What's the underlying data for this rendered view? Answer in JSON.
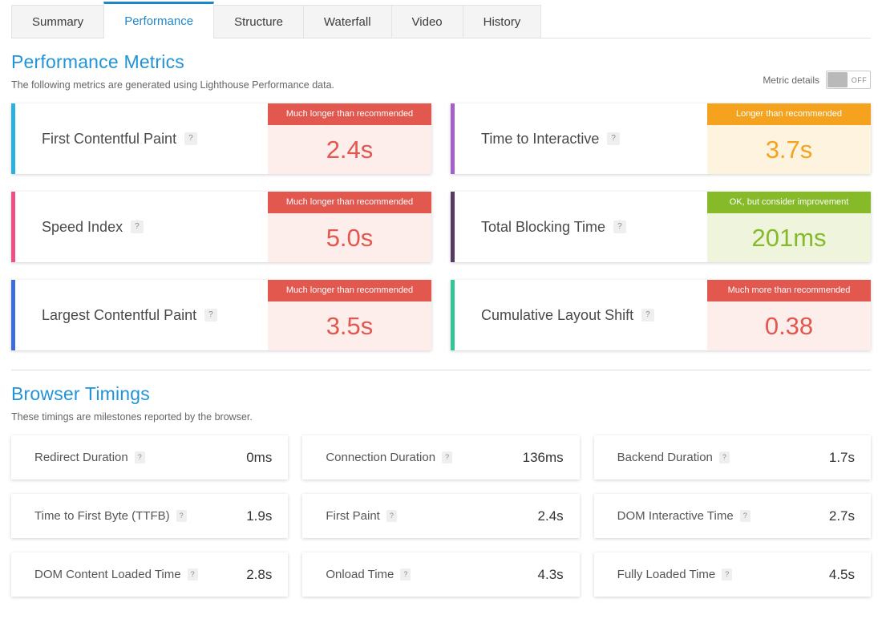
{
  "tabs": [
    {
      "label": "Summary",
      "active": false
    },
    {
      "label": "Performance",
      "active": true
    },
    {
      "label": "Structure",
      "active": false
    },
    {
      "label": "Waterfall",
      "active": false
    },
    {
      "label": "Video",
      "active": false
    },
    {
      "label": "History",
      "active": false
    }
  ],
  "help_icon": "?",
  "performance": {
    "title": "Performance Metrics",
    "subtitle": "The following metrics are generated using Lighthouse Performance data.",
    "toggle": {
      "label": "Metric details",
      "state": "OFF"
    },
    "cards": [
      {
        "label": "First Contentful Paint",
        "badge": "Much longer than recommended",
        "value": "2.4s",
        "accent": "#29b2e0",
        "status": "red",
        "status_color": "#e2574e",
        "status_bg": "#fdeeec"
      },
      {
        "label": "Time to Interactive",
        "badge": "Longer than recommended",
        "value": "3.7s",
        "accent": "#a55fc8",
        "status": "orange",
        "status_color": "#f5a31f",
        "status_bg": "#fdf3de"
      },
      {
        "label": "Speed Index",
        "badge": "Much longer than recommended",
        "value": "5.0s",
        "accent": "#ee4f87",
        "status": "red",
        "status_color": "#e2574e",
        "status_bg": "#fdeeec"
      },
      {
        "label": "Total Blocking Time",
        "badge": "OK, but consider improvement",
        "value": "201ms",
        "accent": "#563a63",
        "status": "green",
        "status_color": "#86ba28",
        "status_bg": "#eff4dc"
      },
      {
        "label": "Largest Contentful Paint",
        "badge": "Much longer than recommended",
        "value": "3.5s",
        "accent": "#3b6edb",
        "status": "red",
        "status_color": "#e2574e",
        "status_bg": "#fdeeec"
      },
      {
        "label": "Cumulative Layout Shift",
        "badge": "Much more than recommended",
        "value": "0.38",
        "accent": "#35c398",
        "status": "red",
        "status_color": "#e2574e",
        "status_bg": "#fdeeec"
      }
    ]
  },
  "browser_timings": {
    "title": "Browser Timings",
    "subtitle": "These timings are milestones reported by the browser.",
    "items": [
      {
        "label": "Redirect Duration",
        "value": "0ms",
        "accent": "#f3ece4"
      },
      {
        "label": "Connection Duration",
        "value": "136ms",
        "accent": "#d9d9d9"
      },
      {
        "label": "Backend Duration",
        "value": "1.7s",
        "accent": "#c3c3c3"
      },
      {
        "label": "Time to First Byte (TTFB)",
        "value": "1.9s",
        "accent": "#8b93c6"
      },
      {
        "label": "First Paint",
        "value": "2.4s",
        "accent": "#3b5f9e"
      },
      {
        "label": "DOM Interactive Time",
        "value": "2.7s",
        "accent": "#356258"
      },
      {
        "label": "DOM Content Loaded Time",
        "value": "2.8s",
        "accent": "#3e8a7d"
      },
      {
        "label": "Onload Time",
        "value": "4.3s",
        "accent": "#b04a72"
      },
      {
        "label": "Fully Loaded Time",
        "value": "4.5s",
        "accent": "#c01d6c"
      }
    ]
  }
}
